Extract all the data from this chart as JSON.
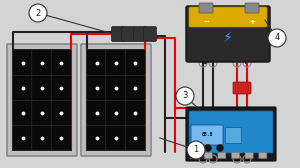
{
  "bg_color": "#d4d4d4",
  "panel_frame_color": "#c0c0c0",
  "panel_cell_color": "#111111",
  "panel_border_color": "#999999",
  "wire_red": "#ee0000",
  "wire_black": "#222222",
  "controller_bg": "#2288cc",
  "controller_dark": "#1a1a1a",
  "battery_body": "#2a2a2a",
  "battery_top": "#ddaa00",
  "label_circle_color": "#ffffff",
  "label_stroke": "#333333"
}
